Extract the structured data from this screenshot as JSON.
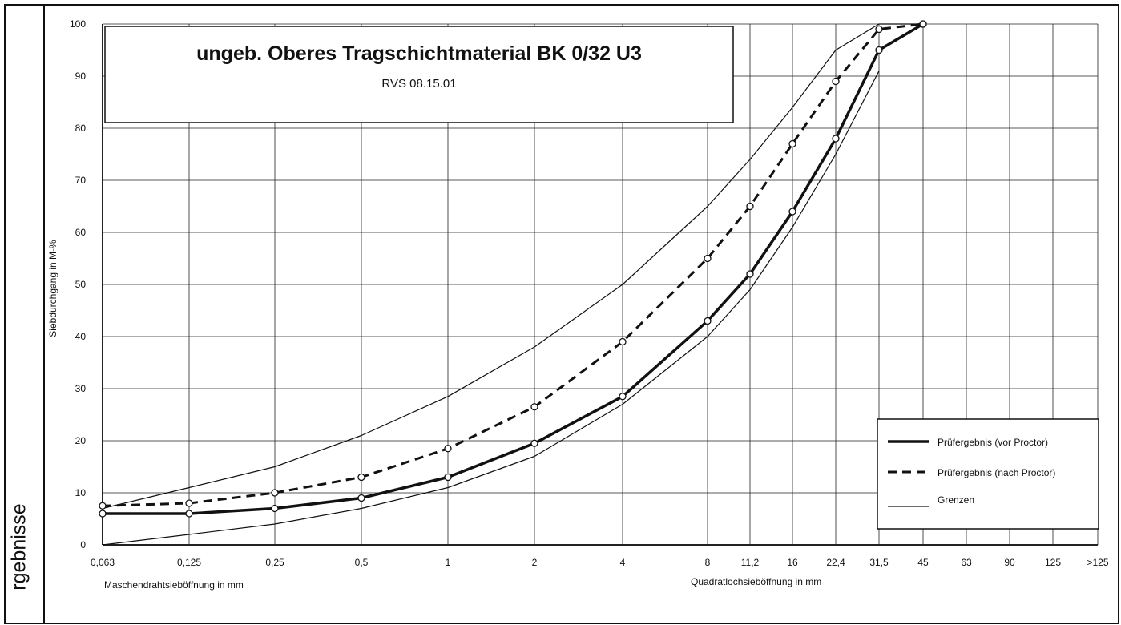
{
  "sidebar": {
    "label": "rgebnisse"
  },
  "chart_data": {
    "type": "line",
    "title": "ungeb. Oberes Tragschichtmaterial BK 0/32 U3",
    "subtitle": "RVS 08.15.01",
    "ylabel": "Siebdurchgang in M-%",
    "xlabel_left": "Maschendrahtsieböffnung in mm",
    "xlabel_right": "Quadratlochsieböffnung in mm",
    "ylim": [
      0,
      100
    ],
    "yticks": [
      "0",
      "10",
      "20",
      "30",
      "40",
      "50",
      "60",
      "70",
      "80",
      "90",
      "100"
    ],
    "categories": [
      "0,063",
      "0,125",
      "0,25",
      "0,5",
      "1",
      "2",
      "4",
      "8",
      "11,2",
      "16",
      "22,4",
      "31,5",
      "45",
      "63",
      "90",
      "125",
      ">125"
    ],
    "grid": true,
    "legend_position": "bottom-right",
    "legend": [
      {
        "label": "Prüfergebnis (vor Proctor)",
        "style": "thick-solid"
      },
      {
        "label": "Prüfergebnis (nach Proctor)",
        "style": "dashed"
      },
      {
        "label": "Grenzen",
        "style": "thin-solid"
      }
    ],
    "series": [
      {
        "name": "Prüfergebnis (vor Proctor)",
        "style": "thick-solid",
        "markers": true,
        "x": [
          "0,063",
          "0,125",
          "0,25",
          "0,5",
          "1",
          "2",
          "4",
          "8",
          "11,2",
          "16",
          "22,4",
          "31,5",
          "45"
        ],
        "values": [
          6,
          6,
          7,
          9,
          13,
          19.5,
          28.5,
          43,
          52,
          64,
          78,
          95,
          100
        ]
      },
      {
        "name": "Prüfergebnis (nach Proctor)",
        "style": "dashed",
        "markers": true,
        "x": [
          "0,063",
          "0,125",
          "0,25",
          "0,5",
          "1",
          "2",
          "4",
          "8",
          "11,2",
          "16",
          "22,4",
          "31,5",
          "45"
        ],
        "values": [
          7.5,
          8,
          10,
          13,
          18.5,
          26.5,
          39,
          55,
          65,
          77,
          89,
          99,
          100
        ]
      },
      {
        "name": "Grenzen",
        "style": "thin-solid",
        "markers": false,
        "x": [
          "0,063",
          "0,125",
          "0,25",
          "0,5",
          "1",
          "2",
          "4",
          "8",
          "11,2",
          "16",
          "22,4",
          "31,5",
          "45"
        ],
        "values": [
          7,
          11,
          15,
          21,
          28.5,
          38,
          50,
          65,
          74,
          84,
          95,
          100,
          100
        ]
      },
      {
        "name": "Grenzen",
        "style": "thin-solid",
        "markers": false,
        "x": [
          "0,063",
          "0,125",
          "0,25",
          "0,5",
          "1",
          "2",
          "4",
          "8",
          "11,2",
          "16",
          "22,4",
          "31,5"
        ],
        "values": [
          0,
          2,
          4,
          7,
          11,
          17,
          27,
          40,
          49,
          61,
          75,
          91
        ]
      }
    ]
  }
}
